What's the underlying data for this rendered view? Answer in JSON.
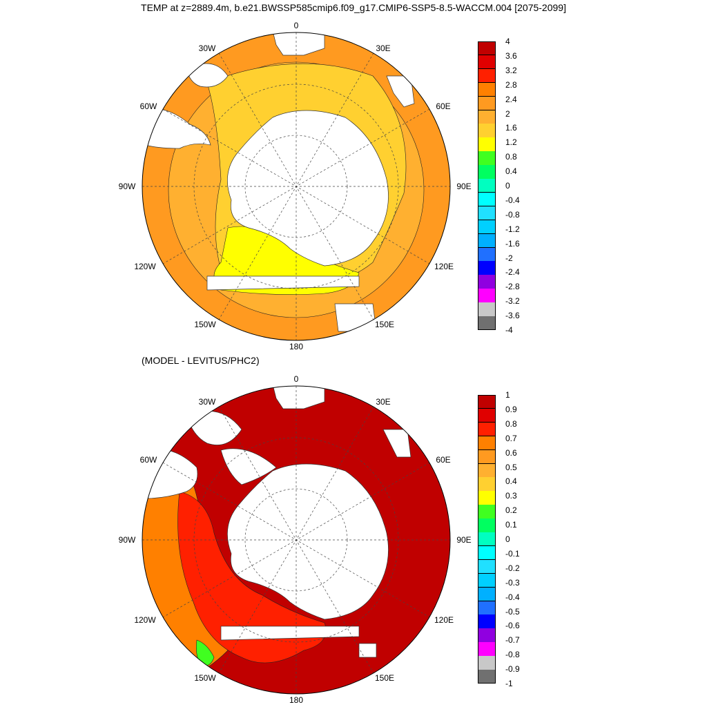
{
  "title": "TEMP at z=2889.4m, b.e21.BWSSP585cmip6.f09_g17.CMIP6-SSP5-8.5-WACCM.004 [2075-2099]",
  "subtitle": "(MODEL - LEVITUS/PHC2)",
  "lon_labels": {
    "top": "0",
    "30w": "30W",
    "30e": "30E",
    "60w": "60W",
    "60e": "60E",
    "90w": "90W",
    "90e": "90E",
    "120w": "120W",
    "120e": "120E",
    "150w": "150W",
    "150e": "150E",
    "bottom": "180"
  },
  "top_colorbar": {
    "labels": [
      "4",
      "3.6",
      "3.2",
      "2.8",
      "2.4",
      "2",
      "1.6",
      "1.2",
      "0.8",
      "0.4",
      "0",
      "-0.4",
      "-0.8",
      "-1.2",
      "-1.6",
      "-2",
      "-2.4",
      "-2.8",
      "-3.2",
      "-3.6",
      "-4"
    ],
    "colors": [
      "#c00000",
      "#e00000",
      "#ff2000",
      "#ff8000",
      "#ff9a20",
      "#ffb030",
      "#ffd030",
      "#ffff00",
      "#40ff20",
      "#00ff60",
      "#00ffc0",
      "#00ffff",
      "#20e0ff",
      "#00d0ff",
      "#00b0ff",
      "#2070ff",
      "#0000ff",
      "#9000e0",
      "#ff00ff",
      "#c8c8c8",
      "#707070"
    ]
  },
  "bottom_colorbar": {
    "labels": [
      "1",
      "0.9",
      "0.8",
      "0.7",
      "0.6",
      "0.5",
      "0.4",
      "0.3",
      "0.2",
      "0.1",
      "0",
      "-0.1",
      "-0.2",
      "-0.3",
      "-0.4",
      "-0.5",
      "-0.6",
      "-0.7",
      "-0.8",
      "-0.9",
      "-1"
    ],
    "colors": [
      "#c00000",
      "#e00000",
      "#ff2000",
      "#ff8000",
      "#ff9a20",
      "#ffb030",
      "#ffd030",
      "#ffff00",
      "#40ff20",
      "#00ff60",
      "#00ffc0",
      "#00ffff",
      "#20e0ff",
      "#00d0ff",
      "#00b0ff",
      "#2070ff",
      "#0000ff",
      "#9000e0",
      "#ff00ff",
      "#c8c8c8",
      "#707070"
    ]
  },
  "colors": {
    "top_ocean": "#ffb030",
    "top_ocean_outer": "#ff9a20",
    "top_band": "#ffd030",
    "top_yellow": "#ffff00",
    "bottom_ocean": "#c00000",
    "bottom_red": "#ff2000",
    "bottom_orange": "#ff8000",
    "bottom_green": "#40ff20",
    "land": "#ffffff"
  }
}
